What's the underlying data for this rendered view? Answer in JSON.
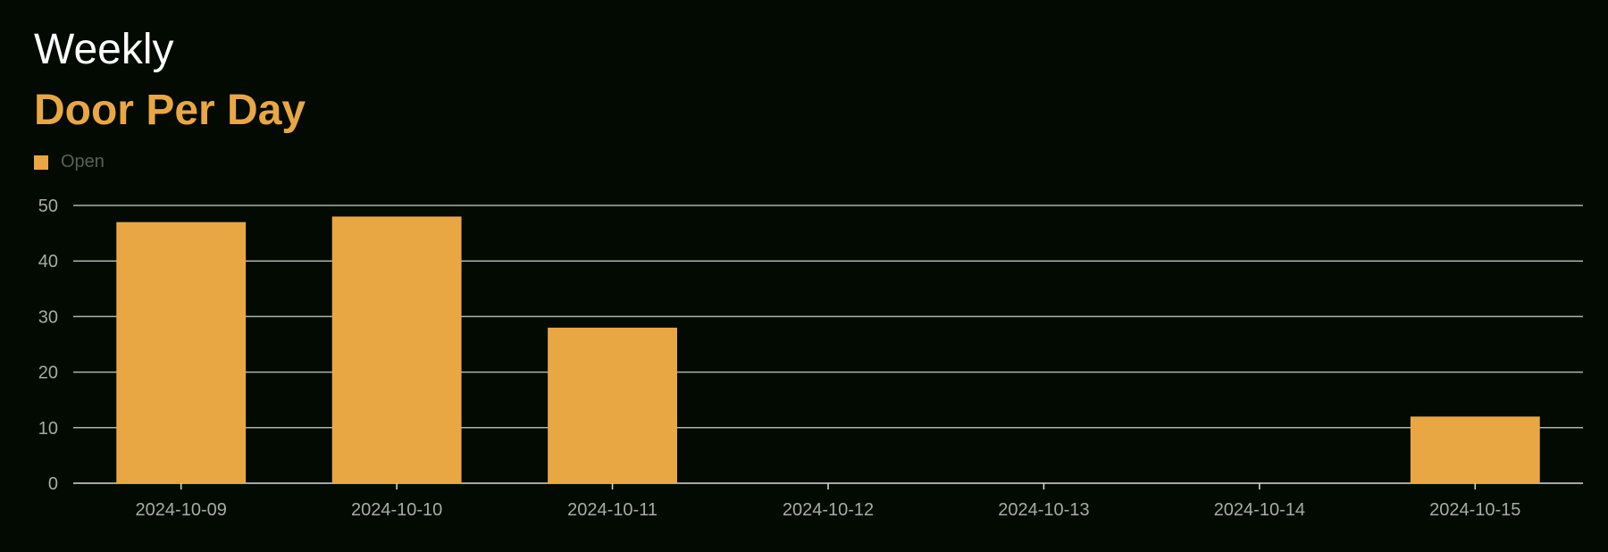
{
  "header": {
    "title": "Weekly",
    "subtitle": "Door Per Day"
  },
  "legend": {
    "label": "Open"
  },
  "colors": {
    "background": "#020a02",
    "bar": "#e9a744",
    "title": "#ffffff",
    "subtitle": "#e9a744",
    "grid": "#d9ddd6",
    "axis_text": "#a7aba5"
  },
  "chart_data": {
    "type": "bar",
    "categories": [
      "2024-10-09",
      "2024-10-10",
      "2024-10-11",
      "2024-10-12",
      "2024-10-13",
      "2024-10-14",
      "2024-10-15"
    ],
    "series": [
      {
        "name": "Open",
        "values": [
          47,
          48,
          28,
          0,
          0,
          0,
          12
        ]
      }
    ],
    "ylim": [
      0,
      50
    ],
    "yticks": [
      0,
      10,
      20,
      30,
      40,
      50
    ],
    "grid": true,
    "legend_position": "top-left"
  }
}
